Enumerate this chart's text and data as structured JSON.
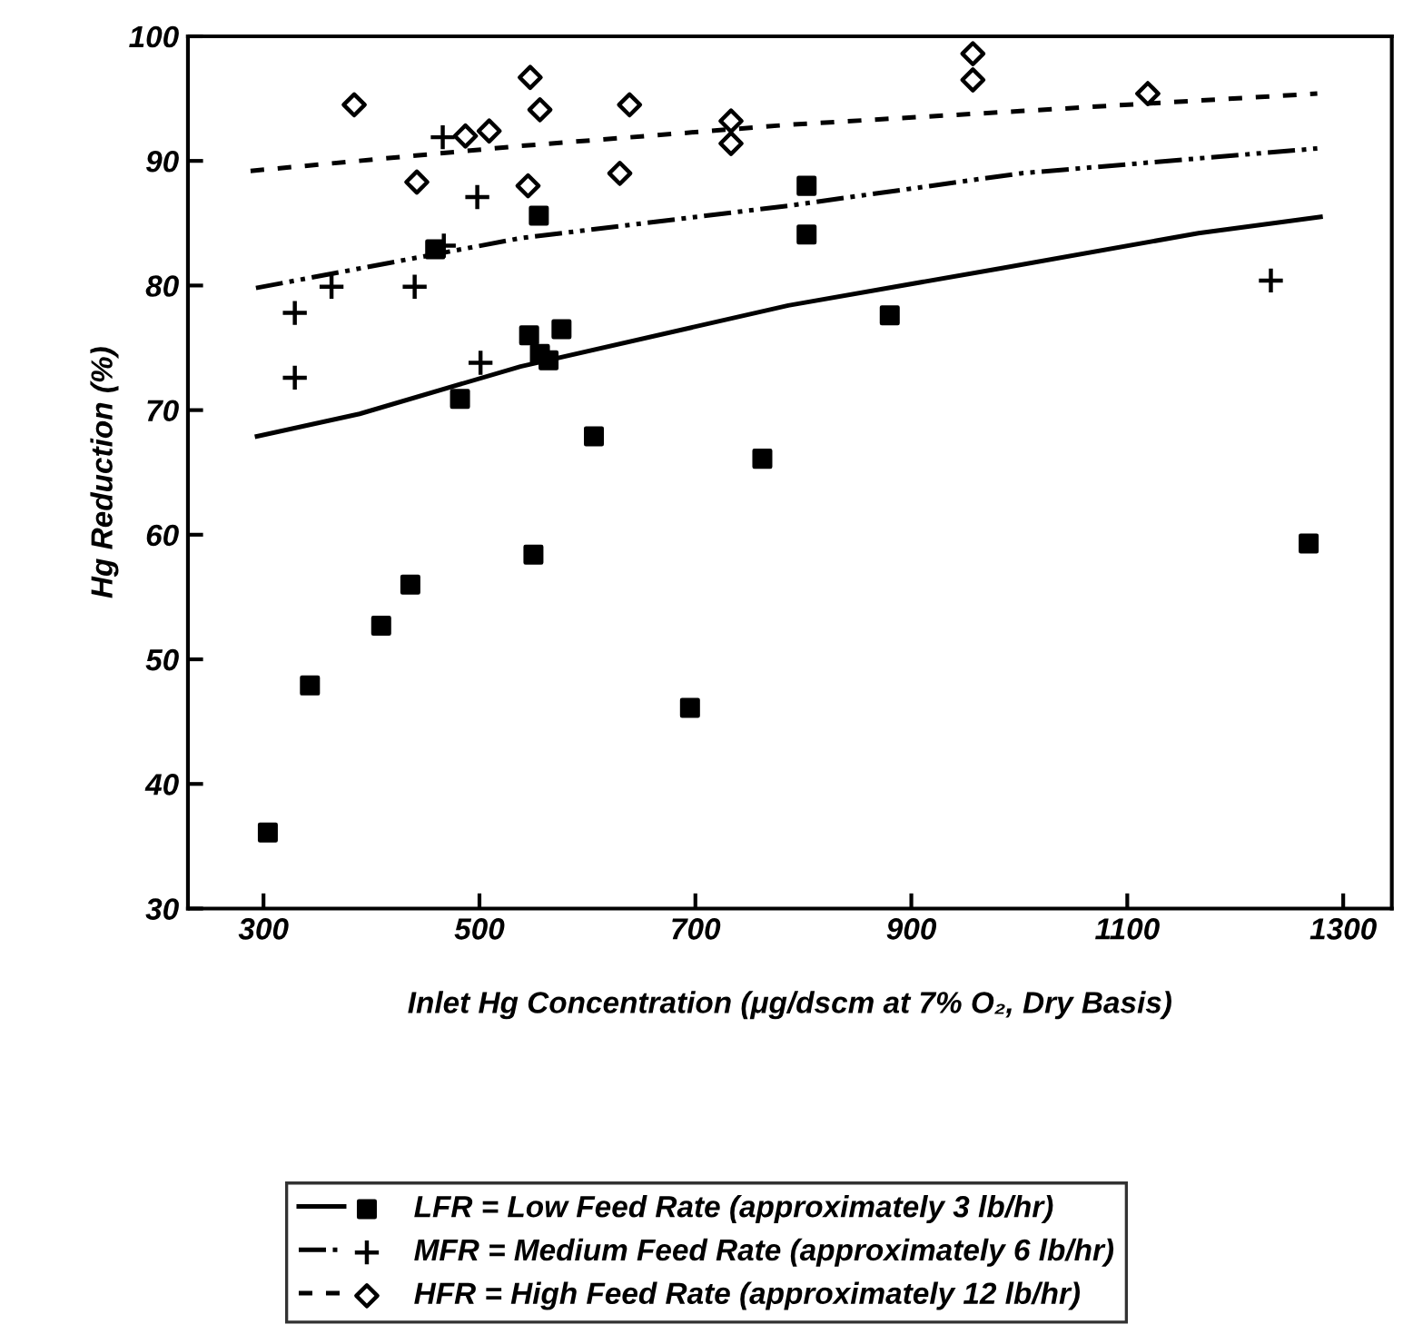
{
  "chart_data": {
    "type": "scatter",
    "xlabel": "Inlet Hg Concentration (μg/dscm at 7% O₂, Dry Basis)",
    "ylabel": "Hg Reduction (%)",
    "xlim": [
      230,
      1345
    ],
    "ylim": [
      30,
      100
    ],
    "xticks": [
      300,
      500,
      700,
      900,
      1100,
      1300
    ],
    "yticks": [
      30,
      40,
      50,
      60,
      70,
      80,
      90,
      100
    ],
    "grid": false,
    "legend": "bottom",
    "series": [
      {
        "name": "LFR = Low Feed Rate (approximately 3 lb/hr)",
        "marker": "square",
        "color": "#000000",
        "x": [
          304,
          343,
          409,
          436,
          459,
          482,
          546,
          550,
          555,
          556,
          564,
          576,
          606,
          695,
          762,
          803,
          803,
          880,
          1268
        ],
        "values": [
          36.1,
          47.9,
          52.7,
          56.0,
          82.9,
          70.9,
          76.0,
          58.4,
          85.6,
          74.5,
          74.0,
          76.5,
          67.9,
          46.1,
          66.1,
          88.0,
          84.1,
          77.6,
          59.3
        ]
      },
      {
        "type": "line",
        "line_style": "solid",
        "color": "#000000",
        "x": [
          294,
          389,
          538,
          786,
          984,
          1166,
          1279
        ],
        "values": [
          67.9,
          69.7,
          73.5,
          78.4,
          81.4,
          84.2,
          85.5
        ]
      },
      {
        "name": "MFR = Medium Feed Rate (approximately 6 lb/hr)",
        "marker": "cross",
        "color": "#000000",
        "x": [
          329,
          329,
          363,
          440,
          466,
          467,
          498,
          501,
          1233
        ],
        "values": [
          77.8,
          72.6,
          79.9,
          79.9,
          91.9,
          83.2,
          87.1,
          73.8,
          80.4
        ]
      },
      {
        "type": "line",
        "line_style": "dashdot",
        "color": "#000000",
        "x": [
          293,
          538,
          786,
          1001,
          1276
        ],
        "values": [
          79.8,
          83.8,
          86.4,
          89.0,
          91.0
        ]
      },
      {
        "name": "HFR = High Feed Rate (approximately 12 lb/hr)",
        "marker": "diamond",
        "color": "#000000",
        "x": [
          384,
          442,
          487,
          509,
          545,
          547,
          556,
          630,
          639,
          733,
          733,
          957,
          957,
          1119
        ],
        "values": [
          94.5,
          88.3,
          92.0,
          92.4,
          88.0,
          96.7,
          94.1,
          89.0,
          94.5,
          93.2,
          91.4,
          98.6,
          96.5,
          95.4
        ]
      },
      {
        "type": "line",
        "line_style": "dashed",
        "color": "#000000",
        "x": [
          288,
          538,
          786,
          1001,
          1276
        ],
        "values": [
          89.2,
          91.2,
          92.9,
          94.0,
          95.4
        ]
      }
    ]
  }
}
